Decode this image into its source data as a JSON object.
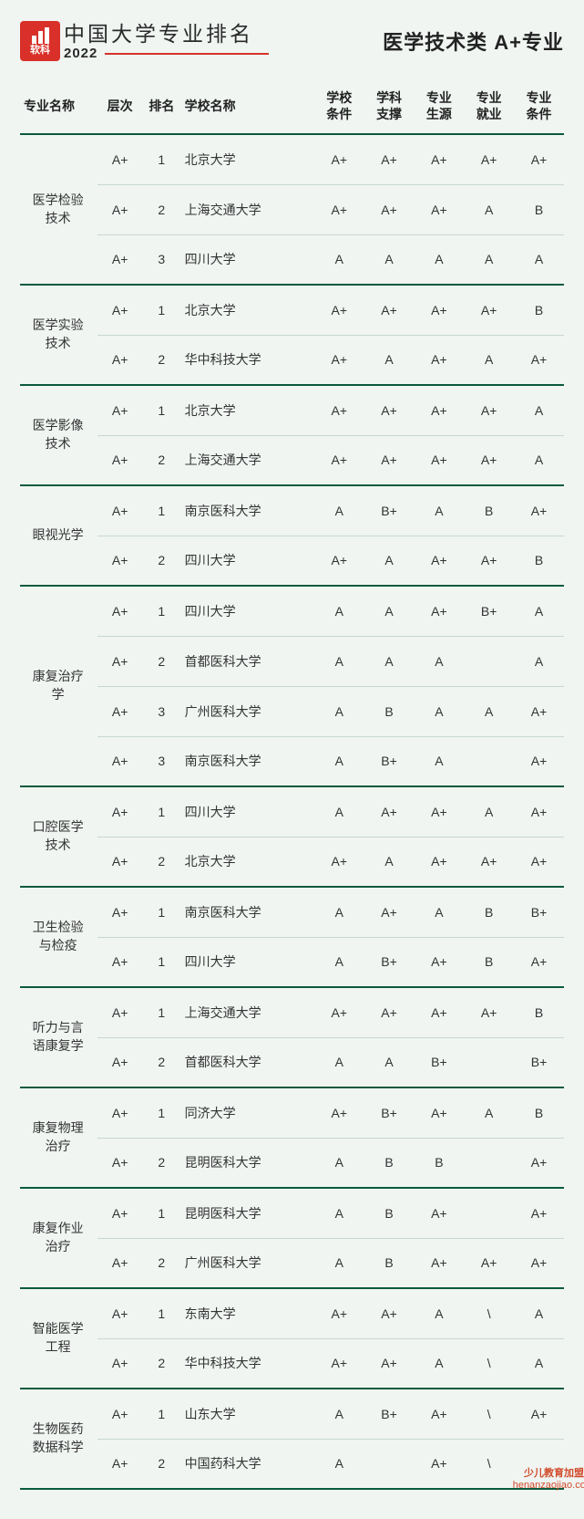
{
  "brand": {
    "logo_text": "软科",
    "title": "中国大学专业排名",
    "year": "2022"
  },
  "page_title": "医学技术类  A+专业",
  "columns": {
    "major": "专业名称",
    "tier": "层次",
    "rank": "排名",
    "school": "学校名称",
    "c1": "学校条件",
    "c2": "学科支撑",
    "c3": "专业生源",
    "c4": "专业就业",
    "c5": "专业条件"
  },
  "col_widths_pct": [
    14,
    8,
    7,
    24,
    9,
    9,
    9,
    9,
    9
  ],
  "groups": [
    {
      "major": "医学检验技术",
      "rows": [
        {
          "tier": "A+",
          "rank": "1",
          "school": "北京大学",
          "s": [
            "A+",
            "A+",
            "A+",
            "A+",
            "A+"
          ]
        },
        {
          "tier": "A+",
          "rank": "2",
          "school": "上海交通大学",
          "s": [
            "A+",
            "A+",
            "A+",
            "A",
            "B"
          ]
        },
        {
          "tier": "A+",
          "rank": "3",
          "school": "四川大学",
          "s": [
            "A",
            "A",
            "A",
            "A",
            "A"
          ]
        }
      ]
    },
    {
      "major": "医学实验技术",
      "rows": [
        {
          "tier": "A+",
          "rank": "1",
          "school": "北京大学",
          "s": [
            "A+",
            "A+",
            "A+",
            "A+",
            "B"
          ]
        },
        {
          "tier": "A+",
          "rank": "2",
          "school": "华中科技大学",
          "s": [
            "A+",
            "A",
            "A+",
            "A",
            "A+"
          ]
        }
      ]
    },
    {
      "major": "医学影像技术",
      "rows": [
        {
          "tier": "A+",
          "rank": "1",
          "school": "北京大学",
          "s": [
            "A+",
            "A+",
            "A+",
            "A+",
            "A"
          ]
        },
        {
          "tier": "A+",
          "rank": "2",
          "school": "上海交通大学",
          "s": [
            "A+",
            "A+",
            "A+",
            "A+",
            "A"
          ]
        }
      ]
    },
    {
      "major": "眼视光学",
      "rows": [
        {
          "tier": "A+",
          "rank": "1",
          "school": "南京医科大学",
          "s": [
            "A",
            "B+",
            "A",
            "B",
            "A+"
          ]
        },
        {
          "tier": "A+",
          "rank": "2",
          "school": "四川大学",
          "s": [
            "A+",
            "A",
            "A+",
            "A+",
            "B"
          ]
        }
      ]
    },
    {
      "major": "康复治疗学",
      "rows": [
        {
          "tier": "A+",
          "rank": "1",
          "school": "四川大学",
          "s": [
            "A",
            "A",
            "A+",
            "B+",
            "A"
          ]
        },
        {
          "tier": "A+",
          "rank": "2",
          "school": "首都医科大学",
          "s": [
            "A",
            "A",
            "A",
            "",
            "A"
          ]
        },
        {
          "tier": "A+",
          "rank": "3",
          "school": "广州医科大学",
          "s": [
            "A",
            "B",
            "A",
            "A",
            "A+"
          ]
        },
        {
          "tier": "A+",
          "rank": "3",
          "school": "南京医科大学",
          "s": [
            "A",
            "B+",
            "A",
            "",
            "A+"
          ]
        }
      ]
    },
    {
      "major": "口腔医学技术",
      "rows": [
        {
          "tier": "A+",
          "rank": "1",
          "school": "四川大学",
          "s": [
            "A",
            "A+",
            "A+",
            "A",
            "A+"
          ]
        },
        {
          "tier": "A+",
          "rank": "2",
          "school": "北京大学",
          "s": [
            "A+",
            "A",
            "A+",
            "A+",
            "A+"
          ]
        }
      ]
    },
    {
      "major": "卫生检验与检疫",
      "rows": [
        {
          "tier": "A+",
          "rank": "1",
          "school": "南京医科大学",
          "s": [
            "A",
            "A+",
            "A",
            "B",
            "B+"
          ]
        },
        {
          "tier": "A+",
          "rank": "1",
          "school": "四川大学",
          "s": [
            "A",
            "B+",
            "A+",
            "B",
            "A+"
          ]
        }
      ]
    },
    {
      "major": "听力与言语康复学",
      "rows": [
        {
          "tier": "A+",
          "rank": "1",
          "school": "上海交通大学",
          "s": [
            "A+",
            "A+",
            "A+",
            "A+",
            "B"
          ]
        },
        {
          "tier": "A+",
          "rank": "2",
          "school": "首都医科大学",
          "s": [
            "A",
            "A",
            "B+",
            "",
            "B+"
          ]
        }
      ]
    },
    {
      "major": "康复物理治疗",
      "rows": [
        {
          "tier": "A+",
          "rank": "1",
          "school": "同济大学",
          "s": [
            "A+",
            "B+",
            "A+",
            "A",
            "B"
          ]
        },
        {
          "tier": "A+",
          "rank": "2",
          "school": "昆明医科大学",
          "s": [
            "A",
            "B",
            "B",
            "",
            "A+"
          ]
        }
      ]
    },
    {
      "major": "康复作业治疗",
      "rows": [
        {
          "tier": "A+",
          "rank": "1",
          "school": "昆明医科大学",
          "s": [
            "A",
            "B",
            "A+",
            "",
            "A+"
          ]
        },
        {
          "tier": "A+",
          "rank": "2",
          "school": "广州医科大学",
          "s": [
            "A",
            "B",
            "A+",
            "A+",
            "A+"
          ]
        }
      ]
    },
    {
      "major": "智能医学工程",
      "rows": [
        {
          "tier": "A+",
          "rank": "1",
          "school": "东南大学",
          "s": [
            "A+",
            "A+",
            "A",
            "\\",
            "A"
          ]
        },
        {
          "tier": "A+",
          "rank": "2",
          "school": "华中科技大学",
          "s": [
            "A+",
            "A+",
            "A",
            "\\",
            "A"
          ]
        }
      ]
    },
    {
      "major": "生物医药数据科学",
      "rows": [
        {
          "tier": "A+",
          "rank": "1",
          "school": "山东大学",
          "s": [
            "A",
            "B+",
            "A+",
            "\\",
            "A+"
          ]
        },
        {
          "tier": "A+",
          "rank": "2",
          "school": "中国药科大学",
          "s": [
            "A",
            "",
            "A+",
            "\\",
            ""
          ]
        }
      ]
    }
  ],
  "watermark": {
    "line1": "少儿教育加盟网",
    "line2": "henanzaojiao.com"
  },
  "colors": {
    "background": "#f0f5f2",
    "heavy_rule": "#0a5a3c",
    "light_rule": "#c8d8ce",
    "brand_red": "#d9302a",
    "text": "#333333"
  }
}
